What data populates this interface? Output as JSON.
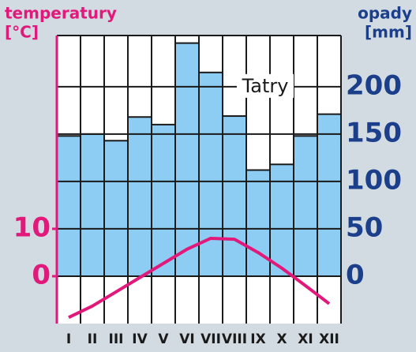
{
  "chart_data": {
    "type": "climate",
    "title": "Tatry",
    "y_axis_label": "temperatury",
    "y_axis_unit": "[°C]",
    "y2_axis_label": "opady",
    "y2_axis_unit": "[mm]",
    "categories": [
      "I",
      "II",
      "III",
      "IV",
      "V",
      "VI",
      "VII",
      "VIII",
      "IX",
      "X",
      "XI",
      "XII"
    ],
    "series": [
      {
        "name": "opady",
        "color": "#8dcdf3",
        "axis": "y2",
        "values": [
          148,
          150,
          143,
          168,
          160,
          246,
          215,
          169,
          112,
          118,
          148,
          171
        ]
      },
      {
        "name": "temperatury",
        "color": "#e0197a",
        "values": [
          -8.7,
          -6.3,
          -3.3,
          -0.3,
          2.7,
          5.7,
          8,
          7.8,
          5,
          1.7,
          -2,
          -5.8
        ]
      }
    ],
    "ylim": [
      -10,
      50.8
    ],
    "yticks": [
      0,
      10
    ],
    "y2lim": [
      -50,
      254
    ],
    "y2ticks": [
      0,
      50,
      100,
      150,
      200
    ]
  }
}
